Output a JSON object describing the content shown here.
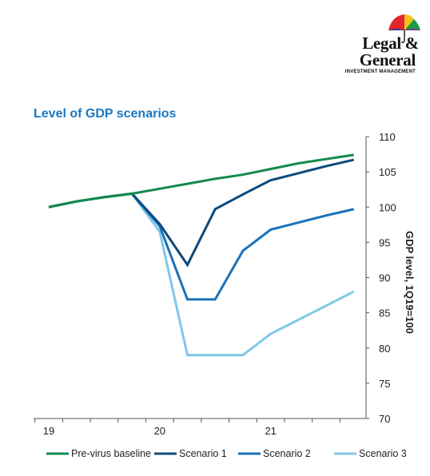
{
  "logo": {
    "line1": "Legal &",
    "line2": "General",
    "line3": "INVESTMENT MANAGEMENT"
  },
  "chart_data": {
    "type": "line",
    "title": "Level of GDP scenarios",
    "ylabel": "GDP level, 1Q19=100",
    "ylim": [
      70,
      110
    ],
    "yticks": [
      70,
      75,
      80,
      85,
      90,
      95,
      100,
      105,
      110
    ],
    "x_tick_labels": [
      "19",
      "20",
      "21"
    ],
    "quarters": [
      "1Q19",
      "2Q19",
      "3Q19",
      "4Q19",
      "1Q20",
      "2Q20",
      "3Q20",
      "4Q20",
      "1Q21",
      "2Q21",
      "3Q21",
      "4Q21"
    ],
    "grid": false,
    "legend_position": "bottom",
    "series": [
      {
        "name": "Pre-virus baseline",
        "color": "#138a4b",
        "values": [
          100,
          100.8,
          101.4,
          101.9,
          102.6,
          103.3,
          104.0,
          104.6,
          105.4,
          106.2,
          106.8,
          107.4
        ]
      },
      {
        "name": "Scenario 1",
        "color": "#0e4a7b",
        "values": [
          100,
          100.8,
          101.4,
          101.9,
          97.6,
          91.8,
          99.7,
          101.8,
          103.8,
          104.8,
          105.8,
          106.7
        ]
      },
      {
        "name": "Scenario 2",
        "color": "#1a72bb",
        "values": [
          100,
          100.8,
          101.4,
          101.9,
          97.3,
          86.9,
          86.9,
          93.8,
          96.8,
          97.8,
          98.8,
          99.7
        ]
      },
      {
        "name": "Scenario 3",
        "color": "#7fc7ea",
        "values": [
          100,
          100.8,
          101.4,
          101.9,
          96.5,
          79.0,
          79.0,
          79.0,
          82.0,
          84.0,
          86.0,
          88.0
        ]
      }
    ]
  }
}
